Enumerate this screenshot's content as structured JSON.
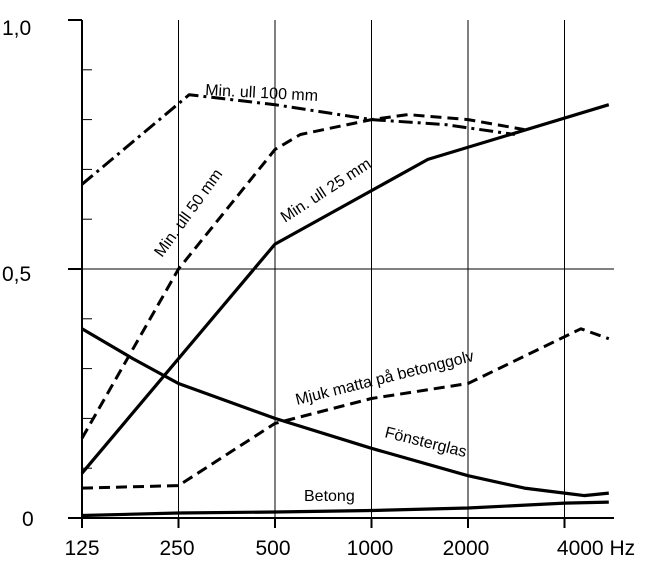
{
  "chart_data": {
    "type": "line",
    "x_unit": "Hz",
    "categories": [
      "125",
      "250",
      "500",
      "1000",
      "2000",
      "4000"
    ],
    "x_tick_labels": [
      "125",
      "250",
      "500",
      "1000",
      "2000",
      "4000 Hz"
    ],
    "y_tick_labels": [
      "0",
      "0,5",
      "1,0"
    ],
    "ylim": [
      0,
      1.0
    ],
    "grid": true,
    "series": [
      {
        "name": "Min. ull 100 mm",
        "style": "dash-dot",
        "x": [
          125,
          270,
          500,
          1000,
          1700,
          2800
        ],
        "y": [
          0.67,
          0.85,
          0.83,
          0.8,
          0.79,
          0.77
        ]
      },
      {
        "name": "Min. ull 50 mm",
        "style": "dashed",
        "x": [
          125,
          250,
          500,
          600,
          1000,
          1300,
          2000,
          3000
        ],
        "y": [
          0.16,
          0.5,
          0.74,
          0.77,
          0.8,
          0.81,
          0.8,
          0.78
        ]
      },
      {
        "name": "Min. ull 25 mm",
        "style": "solid-bold",
        "x": [
          125,
          500,
          1500,
          5500
        ],
        "y": [
          0.09,
          0.55,
          0.72,
          0.83
        ]
      },
      {
        "name": "Mjuk matta på betonggolv",
        "style": "dashed",
        "x": [
          125,
          250,
          500,
          1000,
          2000,
          4500,
          5500
        ],
        "y": [
          0.06,
          0.065,
          0.19,
          0.24,
          0.27,
          0.38,
          0.36
        ]
      },
      {
        "name": "Fönsterglas",
        "style": "solid-bold",
        "x": [
          125,
          180,
          250,
          500,
          1000,
          2000,
          3000,
          4000,
          4600,
          5500
        ],
        "y": [
          0.38,
          0.32,
          0.27,
          0.2,
          0.14,
          0.085,
          0.06,
          0.05,
          0.045,
          0.05
        ]
      },
      {
        "name": "Betong",
        "style": "solid-bold",
        "x": [
          125,
          250,
          500,
          1000,
          2000,
          4000,
          5500
        ],
        "y": [
          0.005,
          0.01,
          0.012,
          0.015,
          0.02,
          0.03,
          0.032
        ]
      }
    ]
  }
}
